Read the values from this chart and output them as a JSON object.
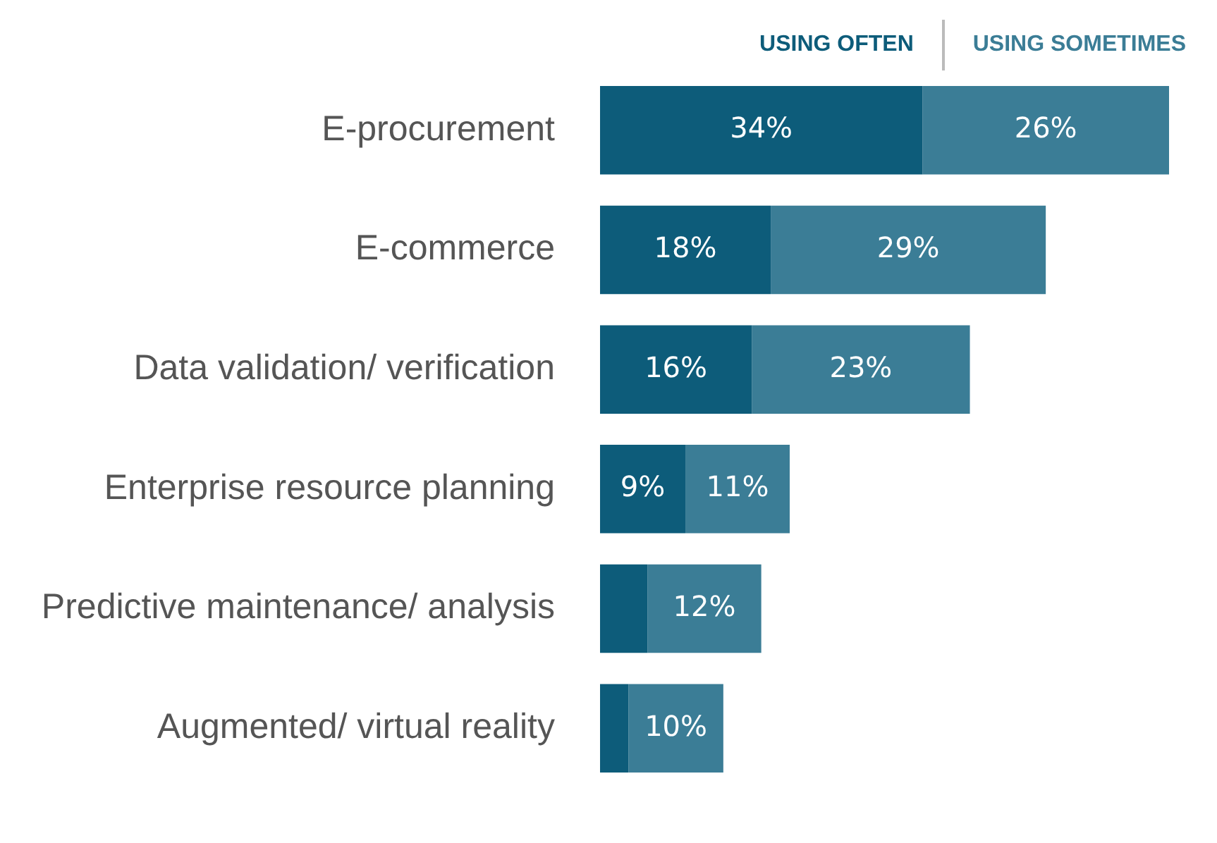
{
  "chart_data": {
    "type": "bar",
    "orientation": "horizontal",
    "stacked": true,
    "legend": "top",
    "categories": [
      "E-procurement",
      "E-commerce",
      "Data validation/ verification",
      "Enterprise resource planning",
      "Predictive maintenance/ analysis",
      "Augmented/ virtual reality"
    ],
    "series": [
      {
        "name": "USING OFTEN",
        "color": "#0d5c7a",
        "values": [
          34,
          18,
          16,
          9,
          5,
          3
        ],
        "value_labels": [
          "34%",
          "18%",
          "16%",
          "9%",
          null,
          null
        ]
      },
      {
        "name": "USING SOMETIMES",
        "color": "#3b7d96",
        "values": [
          26,
          29,
          23,
          11,
          12,
          10
        ],
        "value_labels": [
          "26%",
          "29%",
          "23%",
          "11%",
          "12%",
          "10%"
        ]
      }
    ]
  }
}
